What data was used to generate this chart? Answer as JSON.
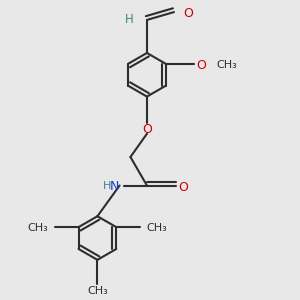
{
  "bg_color": "#e8e8e8",
  "line_color": "#2d2d2d",
  "o_color": "#cc0000",
  "n_color": "#1a3acc",
  "h_color": "#4a8080",
  "bond_width": 1.5,
  "font_size": 8.5,
  "fig_w": 3.0,
  "fig_h": 3.0,
  "dpi": 100,
  "xlim": [
    -2.5,
    3.5
  ],
  "ylim": [
    -3.5,
    3.2
  ]
}
